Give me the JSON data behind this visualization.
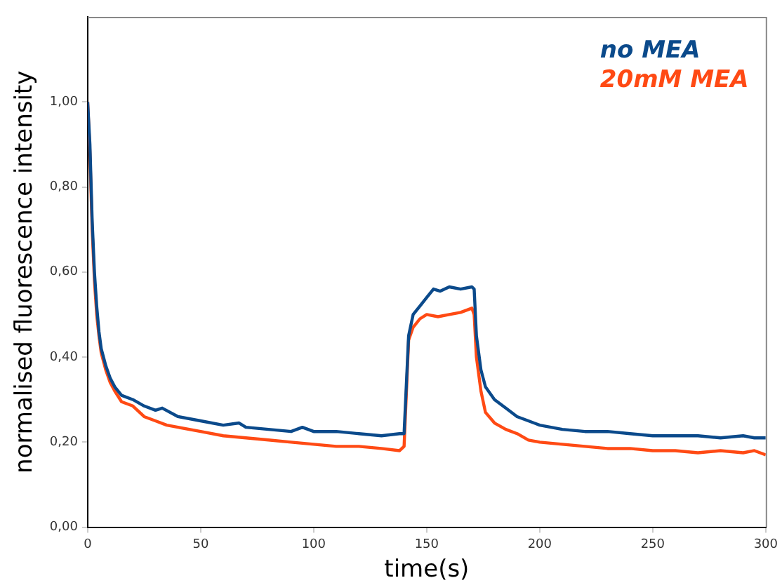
{
  "chart_data": {
    "type": "line",
    "xlabel": "time(s)",
    "ylabel": "normalised fluorescence intensity",
    "legend": "top right",
    "grid": false,
    "marker": "none",
    "line_style": "solid",
    "xlim": [
      0,
      300
    ],
    "xticks": [
      0,
      50,
      100,
      150,
      200,
      250,
      300
    ],
    "ylim": [
      0,
      1.2
    ],
    "yticks": [
      {
        "value": 0,
        "label": "0,00"
      },
      {
        "value": 0.2,
        "label": "0,20"
      },
      {
        "value": 0.4,
        "label": "0,40"
      },
      {
        "value": 0.6,
        "label": "0,60"
      },
      {
        "value": 0.8,
        "label": "0,80"
      },
      {
        "value": 1,
        "label": "1,00"
      }
    ],
    "series": [
      {
        "name": "no MEA",
        "color": "#0b4a8b",
        "x": [
          0,
          1,
          2,
          3,
          4,
          5,
          6,
          8,
          10,
          12,
          15,
          20,
          25,
          30,
          33,
          40,
          50,
          60,
          67,
          70,
          80,
          90,
          95,
          100,
          110,
          120,
          130,
          138,
          140,
          142,
          144,
          147,
          150,
          153,
          156,
          160,
          165,
          170,
          171,
          172,
          174,
          176,
          180,
          185,
          190,
          195,
          200,
          210,
          220,
          230,
          240,
          250,
          260,
          270,
          280,
          290,
          295,
          300
        ],
        "values": [
          1.0,
          0.9,
          0.72,
          0.6,
          0.52,
          0.46,
          0.42,
          0.38,
          0.35,
          0.33,
          0.31,
          0.3,
          0.285,
          0.275,
          0.28,
          0.26,
          0.25,
          0.24,
          0.245,
          0.235,
          0.23,
          0.225,
          0.235,
          0.225,
          0.225,
          0.22,
          0.215,
          0.22,
          0.22,
          0.45,
          0.5,
          0.52,
          0.54,
          0.56,
          0.555,
          0.565,
          0.56,
          0.565,
          0.56,
          0.45,
          0.37,
          0.33,
          0.3,
          0.28,
          0.26,
          0.25,
          0.24,
          0.23,
          0.225,
          0.225,
          0.22,
          0.215,
          0.215,
          0.215,
          0.21,
          0.215,
          0.21,
          0.21
        ]
      },
      {
        "name": "20mM MEA",
        "color": "#ff4a14",
        "x": [
          0,
          1,
          2,
          3,
          4,
          5,
          6,
          8,
          10,
          12,
          15,
          20,
          25,
          30,
          35,
          40,
          50,
          60,
          70,
          80,
          90,
          100,
          110,
          120,
          130,
          138,
          140,
          142,
          144,
          147,
          150,
          155,
          160,
          165,
          170,
          171,
          172,
          174,
          176,
          180,
          185,
          190,
          195,
          200,
          210,
          220,
          230,
          240,
          250,
          260,
          270,
          280,
          290,
          295,
          300
        ],
        "values": [
          1.0,
          0.88,
          0.7,
          0.58,
          0.5,
          0.45,
          0.41,
          0.37,
          0.34,
          0.32,
          0.295,
          0.285,
          0.26,
          0.25,
          0.24,
          0.235,
          0.225,
          0.215,
          0.21,
          0.205,
          0.2,
          0.195,
          0.19,
          0.19,
          0.185,
          0.18,
          0.19,
          0.44,
          0.47,
          0.49,
          0.5,
          0.495,
          0.5,
          0.505,
          0.515,
          0.5,
          0.4,
          0.32,
          0.27,
          0.245,
          0.23,
          0.22,
          0.205,
          0.2,
          0.195,
          0.19,
          0.185,
          0.185,
          0.18,
          0.18,
          0.175,
          0.18,
          0.175,
          0.18,
          0.17
        ]
      }
    ]
  }
}
